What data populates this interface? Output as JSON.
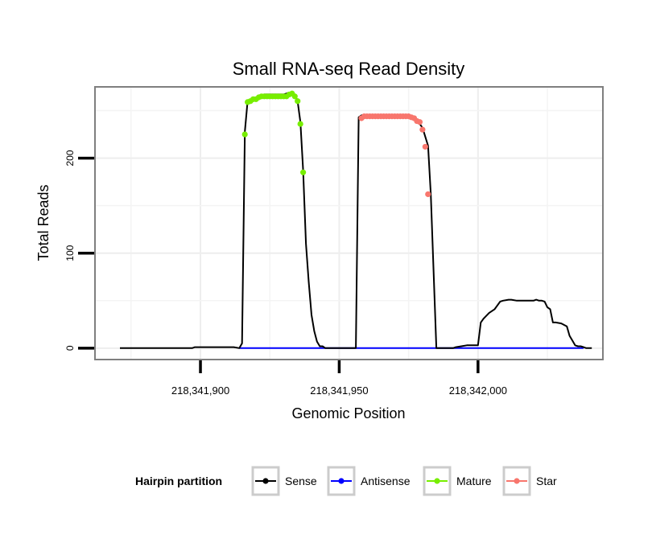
{
  "chart_data": {
    "type": "line",
    "title": "Small RNA-seq Read Density",
    "xlabel": "Genomic Position",
    "ylabel": "Total Reads",
    "xlim": [
      218341862,
      218342045
    ],
    "ylim": [
      -12,
      275
    ],
    "x_ticks": [
      {
        "value": 218341900,
        "label": "218,341,900"
      },
      {
        "value": 218341950,
        "label": "218,341,950"
      },
      {
        "value": 218342000,
        "label": "218,342,000"
      }
    ],
    "y_ticks": [
      {
        "value": 0,
        "label": "0"
      },
      {
        "value": 100,
        "label": "100"
      },
      {
        "value": 200,
        "label": "200"
      }
    ],
    "x_minor_grid": [
      218341875,
      218341925,
      218341975,
      218342025
    ],
    "y_minor_grid": [
      50,
      150,
      250
    ],
    "grid": true,
    "legend": {
      "title": "Hairpin partition",
      "position": "bottom",
      "entries": [
        {
          "label": "Sense",
          "color": "#000000"
        },
        {
          "label": "Antisense",
          "color": "#0000ff"
        },
        {
          "label": "Mature",
          "color": "#77ee00"
        },
        {
          "label": "Star",
          "color": "#f8766d"
        }
      ]
    },
    "series": [
      {
        "name": "Sense",
        "color": "#000000",
        "style": "line",
        "x": [
          218341871,
          218341897,
          218341898,
          218341912,
          218341914,
          218341915,
          218341916,
          218341917,
          218341919,
          218341921,
          218341923,
          218341925,
          218341928,
          218341930,
          218341932,
          218341933,
          218341934,
          218341935,
          218341936,
          218341937,
          218341938,
          218341939,
          218341940,
          218341941,
          218341942,
          218341943,
          218341944,
          218341945,
          218341946,
          218341947,
          218341948,
          218341949,
          218341950,
          218341951,
          218341952,
          218341953,
          218341954,
          218341955,
          218341956,
          218341957,
          218341958,
          218341960,
          218341962,
          218341963,
          218341964,
          218341965,
          218341966,
          218341967,
          218341968,
          218341969,
          218341970,
          218341971,
          218341972,
          218341973,
          218341974,
          218341975,
          218341976,
          218341977,
          218341978,
          218341980,
          218341982,
          218341983,
          218341985,
          218341987,
          218341989,
          218341990,
          218341991,
          218341992,
          218341994,
          218341996,
          218341997,
          218341998,
          218342000,
          218342001,
          218342002,
          218342004,
          218342006,
          218342008,
          218342009,
          218342011,
          218342012,
          218342014,
          218342016,
          218342017,
          218342019,
          218342020,
          218342021,
          218342022,
          218342023,
          218342024,
          218342025,
          218342026,
          218342027,
          218342028,
          218342030,
          218342032,
          218342033,
          218342034,
          218342035,
          218342036,
          218342037,
          218342038,
          218342039,
          218342041
        ],
        "y": [
          0,
          0,
          1,
          1,
          0,
          5,
          228,
          260,
          262,
          265,
          267,
          267,
          267,
          267,
          269,
          269,
          267,
          260,
          238,
          187,
          110,
          70,
          35,
          18,
          7,
          2,
          2,
          0,
          0,
          0,
          0,
          0,
          0,
          0,
          0,
          0,
          0,
          0,
          0,
          243,
          245,
          245,
          245,
          245,
          245,
          245,
          245,
          245,
          245,
          245,
          245,
          245,
          245,
          245,
          245,
          245,
          243,
          242,
          240,
          232,
          213,
          162,
          0,
          0,
          0,
          0,
          0,
          1,
          2,
          3,
          3,
          3,
          3,
          27,
          31,
          37,
          41,
          49,
          50,
          51,
          51,
          50,
          50,
          50,
          50,
          50,
          51,
          50,
          50,
          49,
          43,
          41,
          27,
          27,
          26,
          23,
          13,
          8,
          3,
          2,
          2,
          1,
          0,
          0
        ]
      },
      {
        "name": "Antisense",
        "color": "#0000ff",
        "style": "line",
        "x": [
          218341914,
          218342038
        ],
        "y": [
          0,
          0
        ]
      },
      {
        "name": "Mature",
        "color": "#77ee00",
        "style": "points",
        "x": [
          218341916,
          218341917,
          218341918,
          218341919,
          218341920,
          218341921,
          218341922,
          218341923,
          218341924,
          218341925,
          218341926,
          218341927,
          218341928,
          218341929,
          218341930,
          218341931,
          218341932,
          218341933,
          218341934,
          218341935,
          218341936,
          218341937
        ],
        "y": [
          225,
          259,
          260,
          262,
          262,
          264,
          265,
          265,
          265,
          265,
          265,
          265,
          265,
          265,
          265,
          265,
          267,
          268,
          265,
          260,
          236,
          185
        ]
      },
      {
        "name": "Star",
        "color": "#f8766d",
        "style": "points",
        "x": [
          218341958,
          218341959,
          218341960,
          218341961,
          218341962,
          218341963,
          218341964,
          218341965,
          218341966,
          218341967,
          218341968,
          218341969,
          218341970,
          218341971,
          218341972,
          218341973,
          218341974,
          218341975,
          218341976,
          218341977,
          218341978,
          218341979,
          218341980,
          218341981,
          218341982
        ],
        "y": [
          242,
          244,
          244,
          244,
          244,
          244,
          244,
          244,
          244,
          244,
          244,
          244,
          244,
          244,
          244,
          244,
          244,
          244,
          243,
          242,
          239,
          238,
          230,
          212,
          162
        ]
      }
    ]
  }
}
